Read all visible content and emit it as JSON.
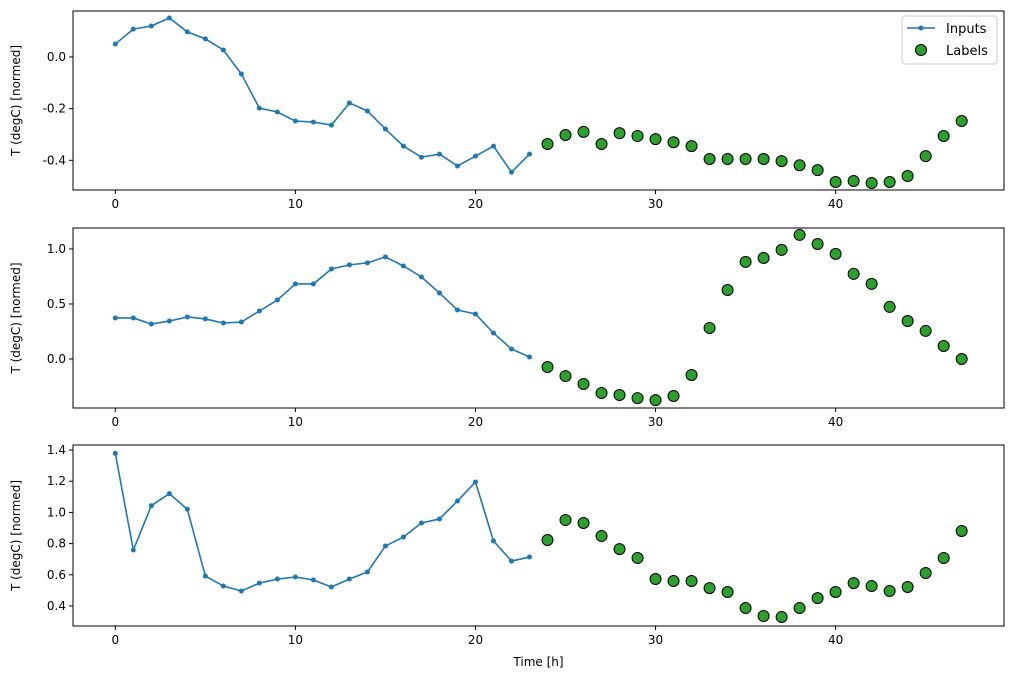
{
  "colors": {
    "inputs": "#1f77b4",
    "labels": "#2ca02c",
    "label_edge": "#000000"
  },
  "legend": {
    "placement": "top-right",
    "entries": [
      "Inputs",
      "Labels"
    ]
  },
  "chart_data": [
    {
      "type": "line",
      "ylabel": "T (degC) [normed]",
      "xlabel": "",
      "xlim": [
        -2.35,
        49.35
      ],
      "ylim": [
        -0.515,
        0.178
      ],
      "xticks": [
        "0",
        "10",
        "20",
        "30",
        "40"
      ],
      "yticks": [
        "0.0",
        "-0.2",
        "-0.4"
      ],
      "legend": true,
      "series": [
        {
          "name": "Inputs",
          "x_start": 0,
          "values": [
            0.05,
            0.108,
            0.12,
            0.151,
            0.097,
            0.07,
            0.027,
            -0.066,
            -0.198,
            -0.213,
            -0.248,
            -0.252,
            -0.264,
            -0.178,
            -0.209,
            -0.279,
            -0.345,
            -0.388,
            -0.376,
            -0.422,
            -0.384,
            -0.345,
            -0.446,
            -0.376
          ]
        },
        {
          "name": "Labels",
          "x_start": 24,
          "values": [
            -0.337,
            -0.302,
            -0.29,
            -0.337,
            -0.295,
            -0.306,
            -0.318,
            -0.33,
            -0.345,
            -0.395,
            -0.395,
            -0.395,
            -0.395,
            -0.403,
            -0.419,
            -0.438,
            -0.484,
            -0.48,
            -0.488,
            -0.484,
            -0.461,
            -0.384,
            -0.306,
            -0.248
          ]
        }
      ]
    },
    {
      "type": "line",
      "ylabel": "T (degC) [normed]",
      "xlabel": "",
      "xlim": [
        -2.35,
        49.35
      ],
      "ylim": [
        -0.445,
        1.19
      ],
      "xticks": [
        "0",
        "10",
        "20",
        "30",
        "40"
      ],
      "yticks": [
        "1.0",
        "0.5",
        "0.0"
      ],
      "legend": false,
      "series": [
        {
          "name": "Inputs",
          "x_start": 0,
          "values": [
            0.373,
            0.373,
            0.318,
            0.345,
            0.382,
            0.364,
            0.327,
            0.336,
            0.436,
            0.536,
            0.682,
            0.682,
            0.818,
            0.855,
            0.873,
            0.927,
            0.845,
            0.745,
            0.6,
            0.445,
            0.409,
            0.236,
            0.091,
            0.018
          ]
        },
        {
          "name": "Labels",
          "x_start": 24,
          "values": [
            -0.073,
            -0.155,
            -0.227,
            -0.309,
            -0.327,
            -0.355,
            -0.373,
            -0.336,
            -0.145,
            0.282,
            0.627,
            0.882,
            0.918,
            0.991,
            1.127,
            1.045,
            0.955,
            0.773,
            0.682,
            0.473,
            0.345,
            0.255,
            0.118,
            0.0
          ]
        }
      ]
    },
    {
      "type": "line",
      "ylabel": "T (degC) [normed]",
      "xlabel": "Time [h]",
      "xlim": [
        -2.35,
        49.35
      ],
      "ylim": [
        0.272,
        1.432
      ],
      "xticks": [
        "0",
        "10",
        "20",
        "30",
        "40"
      ],
      "yticks": [
        "1.4",
        "1.2",
        "1.0",
        "0.8",
        "0.6",
        "0.4"
      ],
      "legend": false,
      "series": [
        {
          "name": "Inputs",
          "x_start": 0,
          "values": [
            1.378,
            0.759,
            1.043,
            1.12,
            1.02,
            0.592,
            0.528,
            0.496,
            0.547,
            0.573,
            0.586,
            0.567,
            0.522,
            0.573,
            0.618,
            0.785,
            0.842,
            0.932,
            0.958,
            1.073,
            1.195,
            0.817,
            0.688,
            0.714
          ]
        },
        {
          "name": "Labels",
          "x_start": 24,
          "values": [
            0.823,
            0.951,
            0.932,
            0.849,
            0.765,
            0.708,
            0.573,
            0.56,
            0.56,
            0.515,
            0.49,
            0.387,
            0.336,
            0.33,
            0.387,
            0.451,
            0.49,
            0.547,
            0.528,
            0.496,
            0.522,
            0.612,
            0.708,
            0.881
          ]
        }
      ]
    }
  ]
}
